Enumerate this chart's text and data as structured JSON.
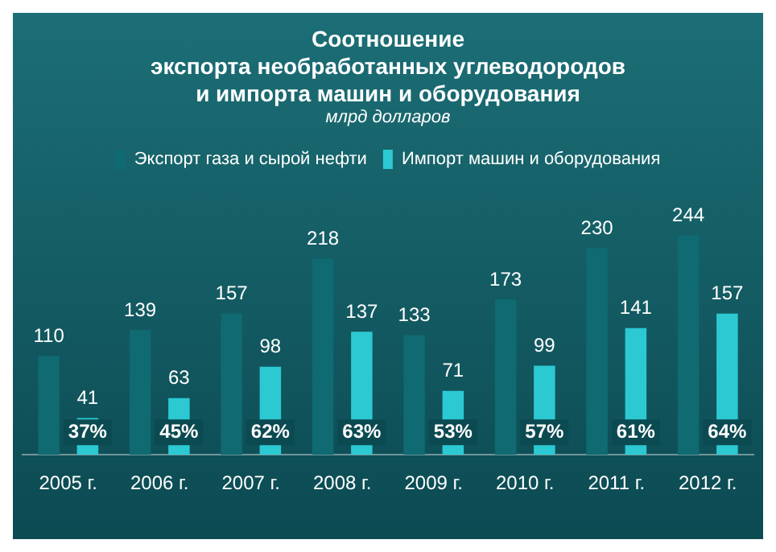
{
  "chart_data": {
    "type": "bar",
    "title": "Соотношение\nэкспорта необработанных углеводородов\nи импорта машин и оборудования",
    "subtitle": "млрд долларов",
    "categories": [
      "2005 г.",
      "2006 г.",
      "2007 г.",
      "2008 г.",
      "2009 г.",
      "2010 г.",
      "2011 г.",
      "2012 г."
    ],
    "series": [
      {
        "name": "Экспорт газа и сырой нефти",
        "color": "#0f6a72",
        "values": [
          110,
          139,
          157,
          218,
          133,
          173,
          230,
          244
        ]
      },
      {
        "name": "Импорт машин и оборудования",
        "color": "#2cc9d2",
        "values": [
          41,
          63,
          98,
          137,
          71,
          99,
          141,
          157
        ]
      }
    ],
    "annotations": [
      "37%",
      "45%",
      "62%",
      "63%",
      "53%",
      "57%",
      "61%",
      "64%"
    ],
    "data_labels": true,
    "legend": "top",
    "grid": false
  }
}
